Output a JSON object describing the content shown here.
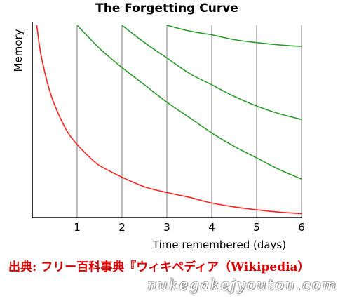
{
  "chart_data": {
    "type": "line",
    "title": "The Forgetting Curve",
    "xlabel": "Time remembered (days)",
    "ylabel": "Memory",
    "xlim": [
      0,
      6
    ],
    "ylim": [
      0,
      100
    ],
    "x_ticks": [
      "1",
      "2",
      "3",
      "4",
      "5",
      "6"
    ],
    "grid_x": true,
    "review_lines_at": [
      1,
      2,
      3,
      4,
      5,
      6
    ],
    "series": [
      {
        "color": "#ff2020",
        "x": [
          0.1,
          0.2,
          0.4,
          0.6,
          0.8,
          1.0,
          1.25,
          1.5,
          2.0,
          2.5,
          3.0,
          3.5,
          4.0,
          4.5,
          5.0,
          5.5,
          6.0
        ],
        "y": [
          100,
          84,
          65,
          53,
          44,
          38,
          32,
          27,
          21,
          16,
          13,
          10.5,
          7.5,
          5.5,
          4,
          2.8,
          2
        ]
      },
      {
        "color": "#2e9a2e",
        "x": [
          1.0,
          1.5,
          2.0,
          2.5,
          3.0,
          3.5,
          4.0,
          4.5,
          5.0,
          5.5,
          6.0
        ],
        "y": [
          100,
          88,
          78,
          69,
          60,
          52,
          44,
          37,
          31,
          25,
          20
        ]
      },
      {
        "color": "#2e9a2e",
        "x": [
          2.0,
          2.5,
          3.0,
          3.5,
          4.0,
          4.5,
          5.0,
          5.5,
          6.0
        ],
        "y": [
          100,
          91,
          83,
          75,
          69,
          63,
          58,
          54,
          51
        ]
      },
      {
        "color": "#2e9a2e",
        "x": [
          3.0,
          3.5,
          4.0,
          4.5,
          5.0,
          5.5,
          6.0
        ],
        "y": [
          100,
          97,
          95,
          92.5,
          91,
          89.8,
          89
        ]
      }
    ]
  },
  "source_caption": "出典: フリー百科事典『ウィキペディア（Wikipedia）",
  "watermark": "nukegakejyoutou.com"
}
